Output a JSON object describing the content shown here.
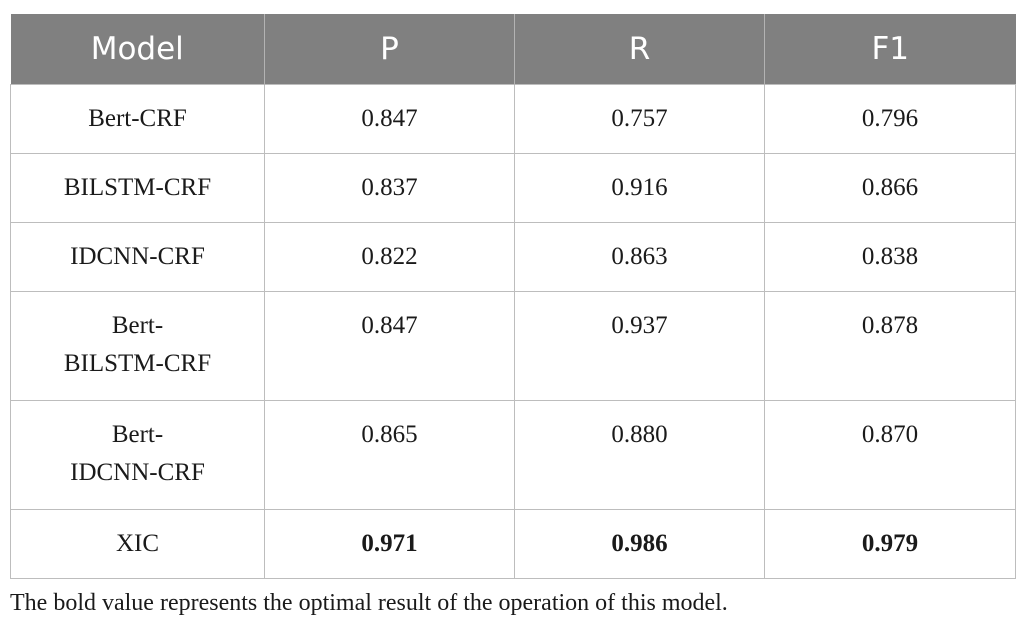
{
  "table": {
    "headers": [
      "Model",
      "P",
      "R",
      "F1"
    ],
    "rows": [
      {
        "model_lines": [
          "Bert-CRF"
        ],
        "p": "0.847",
        "r": "0.757",
        "f1": "0.796",
        "bold": false
      },
      {
        "model_lines": [
          "BILSTM-CRF"
        ],
        "p": "0.837",
        "r": "0.916",
        "f1": "0.866",
        "bold": false
      },
      {
        "model_lines": [
          "IDCNN-CRF"
        ],
        "p": "0.822",
        "r": "0.863",
        "f1": "0.838",
        "bold": false
      },
      {
        "model_lines": [
          "Bert-",
          "BILSTM-CRF"
        ],
        "p": "0.847",
        "r": "0.937",
        "f1": "0.878",
        "bold": false
      },
      {
        "model_lines": [
          "Bert-",
          "IDCNN-CRF"
        ],
        "p": "0.865",
        "r": "0.880",
        "f1": "0.870",
        "bold": false
      },
      {
        "model_lines": [
          "XIC"
        ],
        "p": "0.971",
        "r": "0.986",
        "f1": "0.979",
        "bold": true
      }
    ]
  },
  "footnote": "The bold value represents the optimal result of the operation of this model.",
  "colors": {
    "header_bg": "#808080",
    "header_text": "#ffffff",
    "grid": "#bdbdbd"
  }
}
